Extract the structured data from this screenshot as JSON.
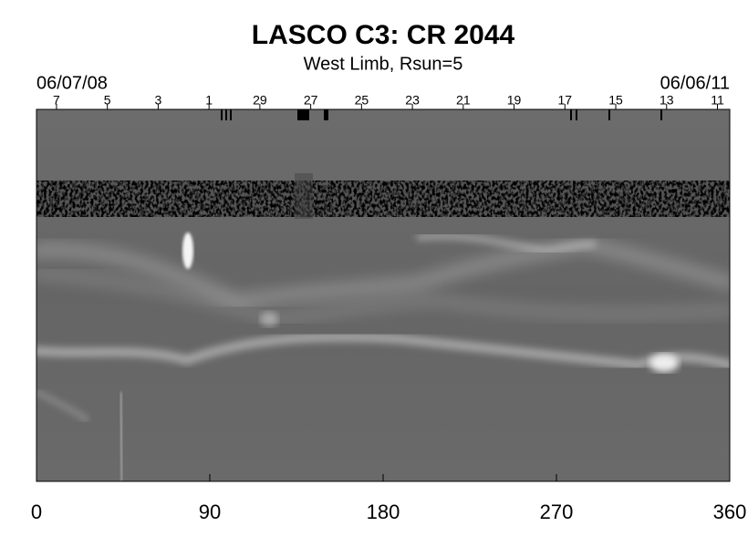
{
  "chart_data": {
    "type": "image",
    "title": "LASCO C3: CR 2044",
    "subtitle": "West Limb, Rsun=5",
    "start_date": "06/07/08",
    "end_date": "06/06/11",
    "xlim": [
      0,
      360
    ],
    "xticks": [
      0,
      90,
      180,
      270,
      360
    ],
    "top_ticks": [
      {
        "value": 10.4,
        "label": "7"
      },
      {
        "value": 36.8,
        "label": "5"
      },
      {
        "value": 63.2,
        "label": "3"
      },
      {
        "value": 89.6,
        "label": "1"
      },
      {
        "value": 116.0,
        "label": "29"
      },
      {
        "value": 142.4,
        "label": "27"
      },
      {
        "value": 168.8,
        "label": "25"
      },
      {
        "value": 195.2,
        "label": "23"
      },
      {
        "value": 221.6,
        "label": "21"
      },
      {
        "value": 248.0,
        "label": "19"
      },
      {
        "value": 274.4,
        "label": "17"
      },
      {
        "value": 300.8,
        "label": "15"
      },
      {
        "value": 327.2,
        "label": "13"
      },
      {
        "value": 353.6,
        "label": "11"
      }
    ]
  }
}
